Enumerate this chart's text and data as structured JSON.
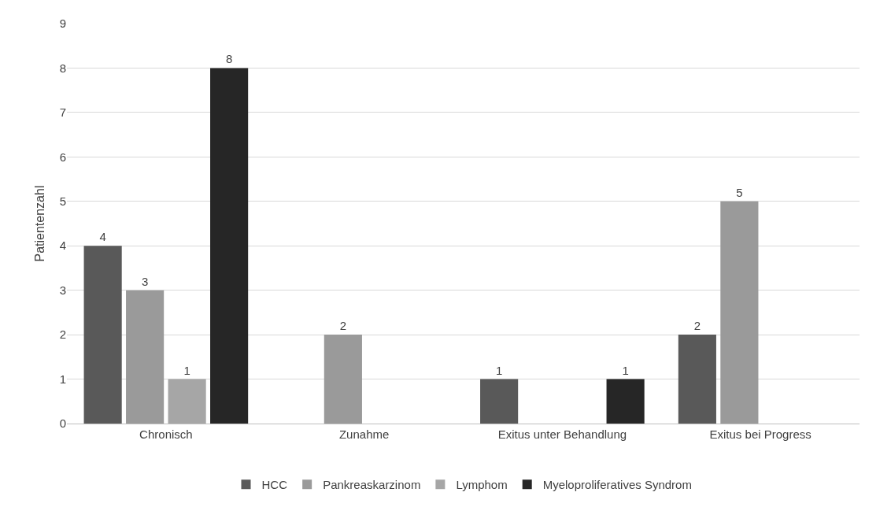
{
  "chart_data": {
    "type": "bar",
    "ylabel": "Patientenzahl",
    "categories": [
      "Chronisch",
      "Zunahme",
      "Exitus unter Behandlung",
      "Exitus bei Progress"
    ],
    "series": [
      {
        "name": "HCC",
        "color": "#595959",
        "values": [
          4,
          null,
          1,
          2
        ]
      },
      {
        "name": "Pankreaskarzinom",
        "color": "#9a9a9a",
        "values": [
          3,
          2,
          null,
          5
        ]
      },
      {
        "name": "Lymphom",
        "color": "#a6a6a6",
        "values": [
          1,
          null,
          null,
          null
        ]
      },
      {
        "name": "Myeloproliferatives Syndrom",
        "color": "#262626",
        "values": [
          8,
          null,
          1,
          null
        ]
      }
    ],
    "ylim": [
      0,
      9
    ],
    "yticks": [
      0,
      1,
      2,
      3,
      4,
      5,
      6,
      7,
      8,
      9
    ],
    "grid": "y",
    "legend": "bottom",
    "data_labels": true
  }
}
